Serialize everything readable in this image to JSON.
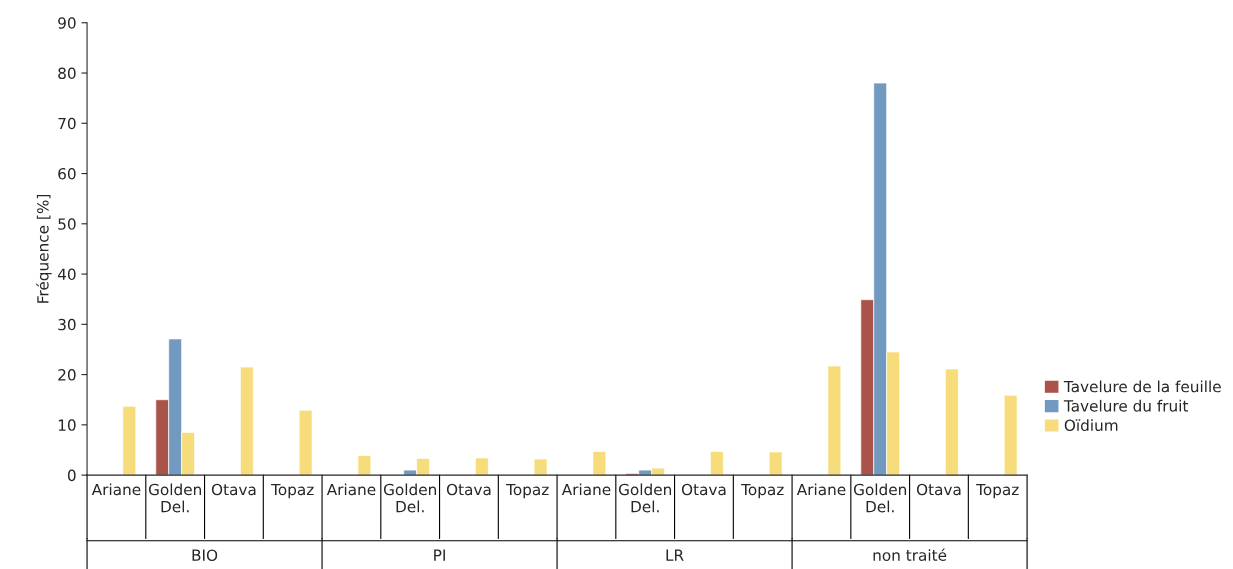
{
  "chart_data": {
    "type": "bar",
    "ylabel": "Fréquence [%]",
    "categories": [
      "Ariane",
      "Golden Del.",
      "Otava",
      "Topaz",
      "Ariane",
      "Golden Del.",
      "Otava",
      "Topaz",
      "Ariane",
      "Golden Del.",
      "Otava",
      "Topaz",
      "Ariane",
      "Golden Del.",
      "Otava",
      "Topaz"
    ],
    "series": [
      {
        "name": "Tavelure de la feuille",
        "color": "#a9534a",
        "values": [
          null,
          15.0,
          null,
          null,
          null,
          null,
          null,
          null,
          null,
          0.3,
          null,
          null,
          null,
          34.9,
          null,
          null
        ]
      },
      {
        "name": "Tavelure du fruit",
        "color": "#7299bf",
        "values": [
          null,
          27.1,
          null,
          null,
          null,
          1.0,
          null,
          null,
          null,
          1.0,
          null,
          null,
          null,
          78.0,
          null,
          null
        ]
      },
      {
        "name": "Oïdium",
        "color": "#f6dc7b",
        "values": [
          13.7,
          8.5,
          21.5,
          12.9,
          3.9,
          3.3,
          3.4,
          3.2,
          4.7,
          1.4,
          4.7,
          4.6,
          21.7,
          24.5,
          21.1,
          15.9
        ]
      }
    ],
    "annotations": [
      "BIO",
      "PI",
      "LR",
      "non traité"
    ],
    "ylim": [
      0,
      90
    ],
    "yticks": [
      0,
      10,
      20,
      30,
      40,
      50,
      60,
      70,
      80,
      90
    ],
    "legend": "right",
    "grid": false
  }
}
